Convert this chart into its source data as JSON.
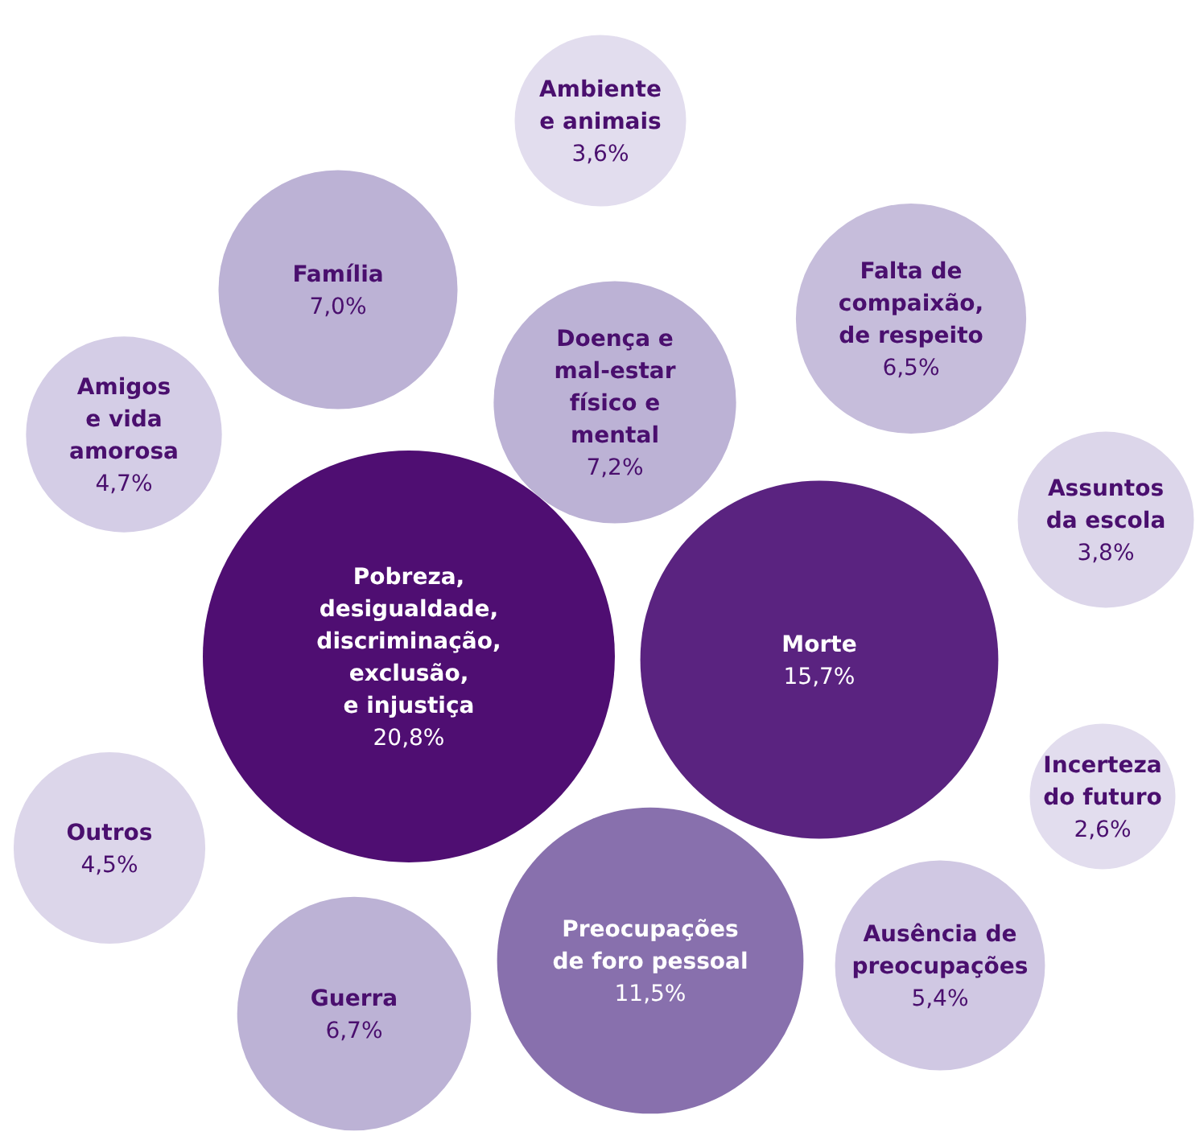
{
  "chart_data": {
    "type": "other",
    "categories": [
      "Pobreza,\ndesigualdade,\ndiscriminação,\nexclusão,\ne injustiça",
      "Morte",
      "Preocupações\nde foro pessoal",
      "Guerra",
      "Outros",
      "Amigos\ne vida\namorosa",
      "Família",
      "Ambiente\ne animais",
      "Doença e\nmal-estar\nfísico e\nmental",
      "Falta de\ncompaixão,\nde respeito",
      "Assuntos\nda escola",
      "Incerteza\ndo futuro",
      "Ausência de\npreocupações"
    ],
    "values": [
      20.8,
      15.7,
      11.5,
      6.7,
      4.5,
      4.7,
      7.0,
      3.6,
      7.2,
      6.5,
      3.8,
      2.6,
      5.4
    ],
    "value_labels": [
      "20,8%",
      "15,7%",
      "11,5%",
      "6,7%",
      "4,5%",
      "4,7%",
      "7,0%",
      "3,6%",
      "7,2%",
      "6,5%",
      "3,8%",
      "2,6%",
      "5,4%"
    ],
    "colors": [
      "#4f0e72",
      "#5a2380",
      "#8870ad",
      "#bcb2d5",
      "#dcd6ea",
      "#d4cde6",
      "#bcb2d5",
      "#e2ddee",
      "#bcb2d5",
      "#c6bddb",
      "#dcd6ea",
      "#e2ddee",
      "#d0c8e3"
    ]
  }
}
